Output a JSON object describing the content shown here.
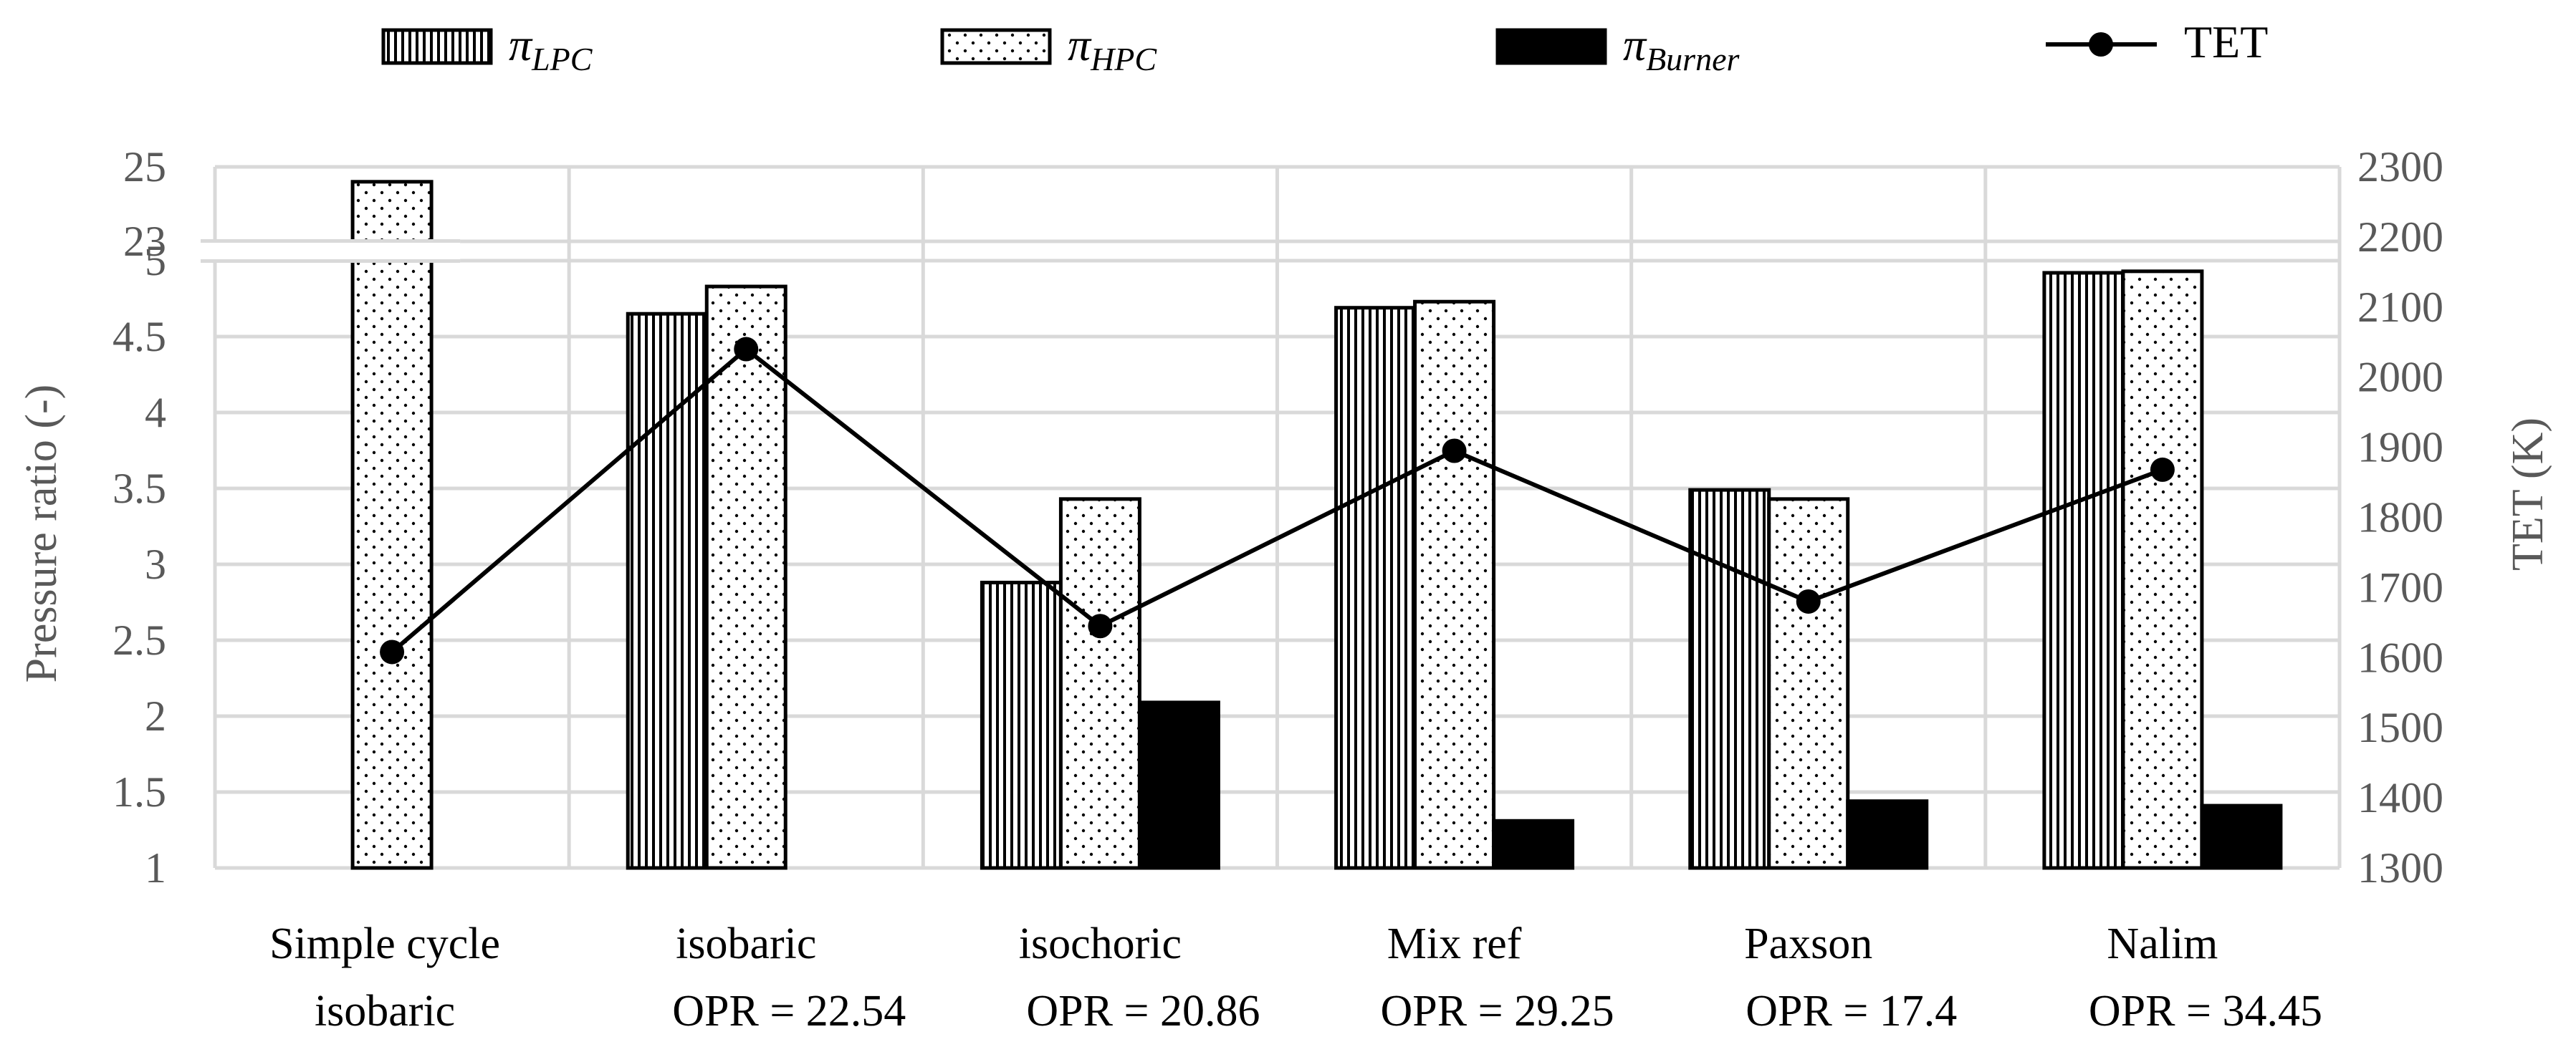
{
  "chart_data": {
    "type": "bar",
    "categories": [
      {
        "line1": "Simple cycle",
        "line2": "isobaric"
      },
      {
        "line1": "isobaric",
        "line2": "OPR = 22.54"
      },
      {
        "line1": "isochoric",
        "line2": "OPR = 20.86"
      },
      {
        "line1": "Mix ref",
        "line2": "OPR = 29.25"
      },
      {
        "line1": "Paxson",
        "line2": "OPR = 17.4"
      },
      {
        "line1": "Nalim",
        "line2": "OPR = 34.45"
      }
    ],
    "series": [
      {
        "name": "π_LPC",
        "symbol": "π",
        "subscript": "LPC",
        "pattern": "vertical-stripes",
        "values": [
          null,
          4.65,
          2.88,
          4.69,
          3.49,
          4.92
        ]
      },
      {
        "name": "π_HPC",
        "symbol": "π",
        "subscript": "HPC",
        "pattern": "dots",
        "values": [
          24.6,
          4.83,
          3.43,
          4.73,
          3.43,
          4.93
        ]
      },
      {
        "name": "π_Burner",
        "symbol": "π",
        "subscript": "Burner",
        "pattern": "solid-black",
        "values": [
          null,
          null,
          2.09,
          1.31,
          1.44,
          1.41
        ]
      }
    ],
    "line_series": {
      "name": "TET",
      "axis": "right",
      "values": [
        1608,
        2040,
        1645,
        1895,
        1680,
        1868
      ]
    },
    "ylabel": "Pressure ratio (-)",
    "y2label": "TET (K)",
    "y_ticks": [
      "1",
      "1.5",
      "2",
      "2.5",
      "3",
      "3.5",
      "4",
      "4.5",
      "5",
      "23",
      "25"
    ],
    "y_axis_break": {
      "lower_max": 5,
      "upper_min": 23,
      "upper_max": 25
    },
    "y2_ticks": [
      "1300",
      "1400",
      "1500",
      "1600",
      "1700",
      "1800",
      "1900",
      "2000",
      "2100",
      "2200",
      "2300"
    ],
    "y2lim": [
      1300,
      2300
    ],
    "grid": true,
    "legend_position": "top"
  },
  "colors": {
    "axis_text": "#595959",
    "grid": "#d9d9d9",
    "bar_border": "#000000",
    "burner_fill": "#000000",
    "line": "#000000"
  }
}
